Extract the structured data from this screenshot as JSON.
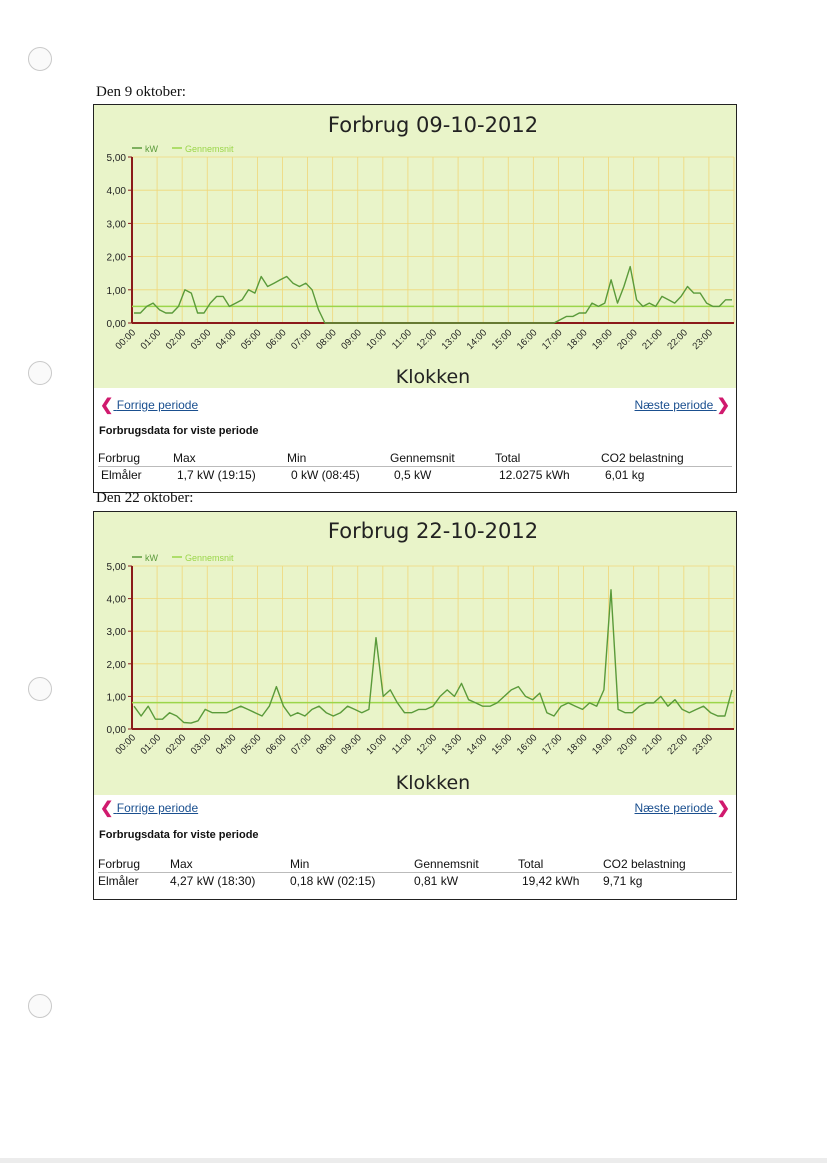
{
  "page": {
    "captions": [
      "Den 9 oktober:",
      "Den 22 oktober:"
    ]
  },
  "panels": [
    {
      "title": "Forbrug 09-10-2012",
      "legend": {
        "kw": "kW",
        "avg": "Gennemsnit"
      },
      "x_label": "Klokken",
      "nav": {
        "prev": "Forrige periode",
        "next": "Næste periode"
      },
      "stats_title": "Forbrugsdata for viste periode",
      "stats_headers": [
        "Forbrug",
        "Max",
        "Min",
        "Gennemsnit",
        "Total",
        "CO2 belastning"
      ],
      "stats_values": [
        "Elmåler",
        "1,7 kW (19:15)",
        "0 kW (08:45)",
        "0,5 kW",
        "12.0275 kWh",
        "6,01 kg"
      ]
    },
    {
      "title": "Forbrug 22-10-2012",
      "legend": {
        "kw": "kW",
        "avg": "Gennemsnit"
      },
      "x_label": "Klokken",
      "nav": {
        "prev": "Forrige periode",
        "next": "Næste periode"
      },
      "stats_title": "Forbrugsdata for viste periode",
      "stats_headers": [
        "Forbrug",
        "Max",
        "Min",
        "Gennemsnit",
        "Total",
        "CO2 belastning"
      ],
      "stats_values": [
        "Elmåler",
        "4,27 kW (18:30)",
        "0,18 kW (02:15)",
        "0,81 kW",
        "19,42 kWh",
        "9,71 kg"
      ]
    }
  ],
  "chart_data": [
    {
      "type": "line",
      "title": "Forbrug 09-10-2012",
      "xlabel": "Klokken",
      "ylabel": "",
      "ylim": [
        0,
        5
      ],
      "yticks": [
        "0,00",
        "1,00",
        "2,00",
        "3,00",
        "4,00",
        "5,00"
      ],
      "x_tick_labels": [
        "00:00",
        "01:00",
        "02:00",
        "03:00",
        "04:00",
        "05:00",
        "06:00",
        "07:00",
        "08:00",
        "09:00",
        "10:00",
        "11:00",
        "12:00",
        "13:00",
        "14:00",
        "15:00",
        "16:00",
        "17:00",
        "18:00",
        "19:00",
        "20:00",
        "21:00",
        "22:00",
        "23:00"
      ],
      "grid": true,
      "legend_position": "top-left",
      "colors": {
        "kw": "#5a9a3a",
        "avg": "#9bd64a"
      },
      "series": [
        {
          "name": "kW",
          "values": [
            0.3,
            0.3,
            0.5,
            0.6,
            0.4,
            0.3,
            0.3,
            0.5,
            1.0,
            0.9,
            0.3,
            0.3,
            0.6,
            0.8,
            0.8,
            0.5,
            0.6,
            0.7,
            1.0,
            0.9,
            1.4,
            1.1,
            1.2,
            1.3,
            1.4,
            1.2,
            1.1,
            1.2,
            1.0,
            0.4,
            0.0,
            0,
            0,
            0,
            0,
            0,
            0,
            0,
            0,
            0,
            0,
            0,
            0,
            0,
            0,
            0,
            0,
            0,
            0,
            0,
            0,
            0,
            0,
            0,
            0,
            0,
            0,
            0,
            0,
            0,
            0,
            0,
            0,
            0,
            0,
            0,
            0,
            0.1,
            0.2,
            0.2,
            0.3,
            0.3,
            0.6,
            0.5,
            0.6,
            1.3,
            0.6,
            1.1,
            1.7,
            0.7,
            0.5,
            0.6,
            0.5,
            0.8,
            0.7,
            0.6,
            0.8,
            1.1,
            0.9,
            0.9,
            0.6,
            0.5,
            0.5,
            0.7,
            0.7
          ]
        },
        {
          "name": "Gennemsnit",
          "values": [
            0.5
          ]
        }
      ]
    },
    {
      "type": "line",
      "title": "Forbrug 22-10-2012",
      "xlabel": "Klokken",
      "ylabel": "",
      "ylim": [
        0,
        5
      ],
      "yticks": [
        "0,00",
        "1,00",
        "2,00",
        "3,00",
        "4,00",
        "5,00"
      ],
      "x_tick_labels": [
        "00:00",
        "01:00",
        "02:00",
        "03:00",
        "04:00",
        "05:00",
        "06:00",
        "07:00",
        "08:00",
        "09:00",
        "10:00",
        "11:00",
        "12:00",
        "13:00",
        "14:00",
        "15:00",
        "16:00",
        "17:00",
        "18:00",
        "19:00",
        "20:00",
        "21:00",
        "22:00",
        "23:00"
      ],
      "grid": true,
      "legend_position": "top-left",
      "colors": {
        "kw": "#5a9a3a",
        "avg": "#9bd64a"
      },
      "series": [
        {
          "name": "kW",
          "values": [
            0.7,
            0.4,
            0.7,
            0.3,
            0.3,
            0.5,
            0.4,
            0.2,
            0.18,
            0.25,
            0.6,
            0.5,
            0.5,
            0.5,
            0.6,
            0.7,
            0.6,
            0.5,
            0.4,
            0.7,
            1.3,
            0.7,
            0.4,
            0.5,
            0.4,
            0.6,
            0.7,
            0.5,
            0.4,
            0.5,
            0.7,
            0.6,
            0.5,
            0.6,
            2.8,
            1.0,
            1.2,
            0.8,
            0.5,
            0.5,
            0.6,
            0.6,
            0.7,
            1.0,
            1.2,
            1.0,
            1.4,
            0.9,
            0.8,
            0.7,
            0.7,
            0.8,
            1.0,
            1.2,
            1.3,
            1.0,
            0.9,
            1.1,
            0.5,
            0.4,
            0.7,
            0.8,
            0.7,
            0.6,
            0.8,
            0.7,
            1.2,
            4.27,
            0.6,
            0.5,
            0.5,
            0.7,
            0.8,
            0.8,
            1.0,
            0.7,
            0.9,
            0.6,
            0.5,
            0.6,
            0.7,
            0.5,
            0.4,
            0.4,
            1.2
          ]
        },
        {
          "name": "Gennemsnit",
          "values": [
            0.81
          ]
        }
      ]
    }
  ]
}
